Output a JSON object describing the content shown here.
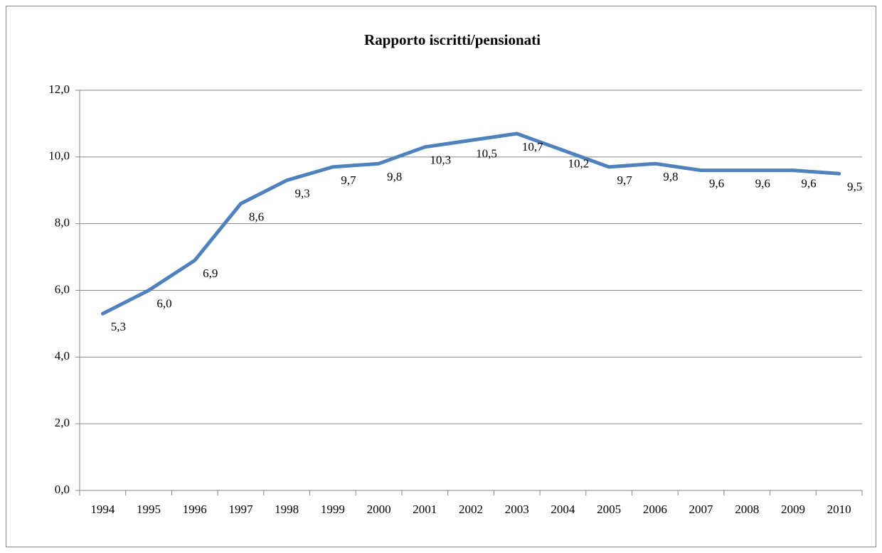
{
  "chart_data": {
    "type": "line",
    "title": "Rapporto iscritti/pensionati",
    "categories": [
      "1994",
      "1995",
      "1996",
      "1997",
      "1998",
      "1999",
      "2000",
      "2001",
      "2002",
      "2003",
      "2004",
      "2005",
      "2006",
      "2007",
      "2008",
      "2009",
      "2010"
    ],
    "series": [
      {
        "name": "Rapporto iscritti/pensionati",
        "color": "#4f81bd",
        "values": [
          5.3,
          6.0,
          6.9,
          8.6,
          9.3,
          9.7,
          9.8,
          10.3,
          10.5,
          10.7,
          10.2,
          9.7,
          9.8,
          9.6,
          9.6,
          9.6,
          9.5
        ],
        "value_labels": [
          "5,3",
          "6,0",
          "6,9",
          "8,6",
          "9,3",
          "9,7",
          "9,8",
          "10,3",
          "10,5",
          "10,7",
          "10,2",
          "9,7",
          "9,8",
          "9,6",
          "9,6",
          "9,6",
          "9,5"
        ]
      }
    ],
    "ylim": [
      0,
      12
    ],
    "yticks": [
      {
        "value": 0,
        "label": "0,0"
      },
      {
        "value": 2,
        "label": "2,0"
      },
      {
        "value": 4,
        "label": "4,0"
      },
      {
        "value": 6,
        "label": "6,0"
      },
      {
        "value": 8,
        "label": "8,0"
      },
      {
        "value": 10,
        "label": "10,0"
      },
      {
        "value": 12,
        "label": "12,0"
      }
    ],
    "grid": true
  }
}
